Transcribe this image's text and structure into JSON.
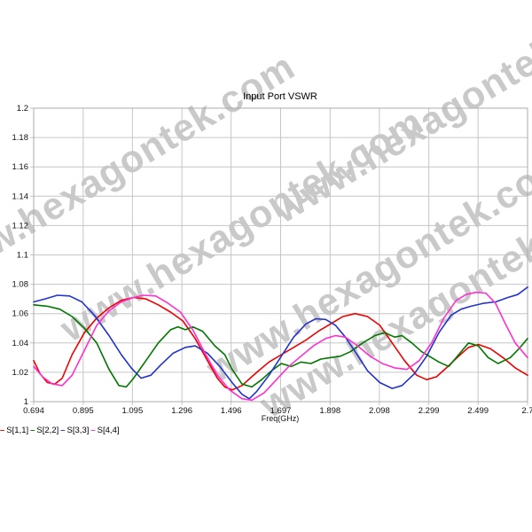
{
  "watermark": {
    "text": "www.hexagontek.com",
    "color": "#c9c9c9"
  },
  "chart": {
    "title": "Input Port VSWR",
    "xlabel": "Freq(GHz)"
  },
  "legend": {
    "items": [
      {
        "label": "S[1,1]"
      },
      {
        "label": "S[2,2]"
      },
      {
        "label": "S[3,3]"
      },
      {
        "label": "S[4,4]"
      }
    ]
  },
  "chart_data": {
    "type": "line",
    "title": "Input Port VSWR",
    "xlabel": "Freq(GHz)",
    "ylabel": "",
    "xlim": [
      0.694,
      2.7
    ],
    "ylim": [
      1.0,
      1.2
    ],
    "grid": true,
    "legend_position": "bottom-left",
    "x_ticks": {
      "values": [
        0.694,
        0.895,
        1.095,
        1.296,
        1.496,
        1.697,
        1.898,
        2.098,
        2.299,
        2.499,
        2.7
      ],
      "labels": [
        "0.694",
        "0.895",
        "1.095",
        "1.296",
        "1.496",
        "1.697",
        "1.898",
        "2.098",
        "2.299",
        "2.499",
        "2.7"
      ]
    },
    "y_ticks": {
      "values": [
        1.2,
        1.18,
        1.16,
        1.14,
        1.12,
        1.1,
        1.08,
        1.06,
        1.04,
        1.02,
        1.0
      ],
      "labels": [
        "1.2",
        "1.18",
        "1.16",
        "1.14",
        "1.12",
        "1.1",
        "1.08",
        "1.06",
        "1.04",
        "1.02",
        "1"
      ]
    },
    "series": [
      {
        "name": "S[1,1]",
        "color": "#ee0000",
        "points": [
          [
            0.694,
            1.028
          ],
          [
            0.72,
            1.019
          ],
          [
            0.75,
            1.013
          ],
          [
            0.78,
            1.012
          ],
          [
            0.81,
            1.016
          ],
          [
            0.85,
            1.032
          ],
          [
            0.9,
            1.047
          ],
          [
            0.95,
            1.057
          ],
          [
            1.0,
            1.064
          ],
          [
            1.05,
            1.069
          ],
          [
            1.1,
            1.071
          ],
          [
            1.15,
            1.07
          ],
          [
            1.2,
            1.066
          ],
          [
            1.25,
            1.061
          ],
          [
            1.3,
            1.055
          ],
          [
            1.35,
            1.043
          ],
          [
            1.4,
            1.028
          ],
          [
            1.44,
            1.016
          ],
          [
            1.47,
            1.01
          ],
          [
            1.5,
            1.008
          ],
          [
            1.54,
            1.011
          ],
          [
            1.6,
            1.02
          ],
          [
            1.65,
            1.027
          ],
          [
            1.7,
            1.032
          ],
          [
            1.75,
            1.037
          ],
          [
            1.8,
            1.042
          ],
          [
            1.85,
            1.048
          ],
          [
            1.9,
            1.053
          ],
          [
            1.95,
            1.058
          ],
          [
            2.0,
            1.06
          ],
          [
            2.05,
            1.058
          ],
          [
            2.1,
            1.052
          ],
          [
            2.15,
            1.04
          ],
          [
            2.2,
            1.028
          ],
          [
            2.25,
            1.018
          ],
          [
            2.29,
            1.015
          ],
          [
            2.33,
            1.017
          ],
          [
            2.37,
            1.023
          ],
          [
            2.42,
            1.031
          ],
          [
            2.46,
            1.037
          ],
          [
            2.5,
            1.039
          ],
          [
            2.55,
            1.036
          ],
          [
            2.6,
            1.03
          ],
          [
            2.65,
            1.023
          ],
          [
            2.7,
            1.018
          ]
        ]
      },
      {
        "name": "S[2,2]",
        "color": "#007700",
        "points": [
          [
            0.694,
            1.066
          ],
          [
            0.75,
            1.065
          ],
          [
            0.8,
            1.063
          ],
          [
            0.85,
            1.058
          ],
          [
            0.9,
            1.05
          ],
          [
            0.95,
            1.04
          ],
          [
            1.0,
            1.022
          ],
          [
            1.04,
            1.011
          ],
          [
            1.07,
            1.01
          ],
          [
            1.1,
            1.016
          ],
          [
            1.15,
            1.028
          ],
          [
            1.2,
            1.04
          ],
          [
            1.25,
            1.049
          ],
          [
            1.28,
            1.051
          ],
          [
            1.31,
            1.049
          ],
          [
            1.34,
            1.051
          ],
          [
            1.38,
            1.048
          ],
          [
            1.43,
            1.038
          ],
          [
            1.47,
            1.032
          ],
          [
            1.5,
            1.022
          ],
          [
            1.54,
            1.012
          ],
          [
            1.58,
            1.01
          ],
          [
            1.62,
            1.015
          ],
          [
            1.66,
            1.021
          ],
          [
            1.7,
            1.026
          ],
          [
            1.74,
            1.024
          ],
          [
            1.78,
            1.027
          ],
          [
            1.82,
            1.026
          ],
          [
            1.86,
            1.029
          ],
          [
            1.9,
            1.03
          ],
          [
            1.94,
            1.031
          ],
          [
            1.98,
            1.034
          ],
          [
            2.03,
            1.04
          ],
          [
            2.08,
            1.045
          ],
          [
            2.12,
            1.047
          ],
          [
            2.16,
            1.044
          ],
          [
            2.19,
            1.045
          ],
          [
            2.23,
            1.04
          ],
          [
            2.27,
            1.034
          ],
          [
            2.31,
            1.03
          ],
          [
            2.34,
            1.027
          ],
          [
            2.38,
            1.024
          ],
          [
            2.42,
            1.032
          ],
          [
            2.46,
            1.04
          ],
          [
            2.5,
            1.038
          ],
          [
            2.54,
            1.03
          ],
          [
            2.58,
            1.026
          ],
          [
            2.63,
            1.03
          ],
          [
            2.67,
            1.037
          ],
          [
            2.7,
            1.043
          ]
        ]
      },
      {
        "name": "S[3,3]",
        "color": "#2233cc",
        "points": [
          [
            0.694,
            1.068
          ],
          [
            0.74,
            1.07
          ],
          [
            0.79,
            1.0725
          ],
          [
            0.84,
            1.072
          ],
          [
            0.89,
            1.068
          ],
          [
            0.94,
            1.059
          ],
          [
            1.0,
            1.045
          ],
          [
            1.05,
            1.032
          ],
          [
            1.09,
            1.023
          ],
          [
            1.13,
            1.016
          ],
          [
            1.17,
            1.018
          ],
          [
            1.21,
            1.025
          ],
          [
            1.26,
            1.033
          ],
          [
            1.31,
            1.037
          ],
          [
            1.35,
            1.038
          ],
          [
            1.4,
            1.033
          ],
          [
            1.45,
            1.024
          ],
          [
            1.5,
            1.013
          ],
          [
            1.54,
            1.005
          ],
          [
            1.57,
            1.002
          ],
          [
            1.6,
            1.007
          ],
          [
            1.65,
            1.018
          ],
          [
            1.7,
            1.031
          ],
          [
            1.75,
            1.044
          ],
          [
            1.8,
            1.053
          ],
          [
            1.84,
            1.0565
          ],
          [
            1.88,
            1.056
          ],
          [
            1.92,
            1.052
          ],
          [
            1.96,
            1.044
          ],
          [
            2.0,
            1.034
          ],
          [
            2.05,
            1.021
          ],
          [
            2.1,
            1.013
          ],
          [
            2.15,
            1.009
          ],
          [
            2.19,
            1.011
          ],
          [
            2.24,
            1.019
          ],
          [
            2.29,
            1.031
          ],
          [
            2.34,
            1.047
          ],
          [
            2.39,
            1.059
          ],
          [
            2.43,
            1.063
          ],
          [
            2.47,
            1.065
          ],
          [
            2.52,
            1.067
          ],
          [
            2.57,
            1.068
          ],
          [
            2.62,
            1.071
          ],
          [
            2.66,
            1.073
          ],
          [
            2.7,
            1.078
          ]
        ]
      },
      {
        "name": "S[4,4]",
        "color": "#ff2fd0",
        "points": [
          [
            0.694,
            1.024
          ],
          [
            0.73,
            1.017
          ],
          [
            0.77,
            1.012
          ],
          [
            0.81,
            1.011
          ],
          [
            0.85,
            1.018
          ],
          [
            0.9,
            1.035
          ],
          [
            0.95,
            1.052
          ],
          [
            1.0,
            1.062
          ],
          [
            1.05,
            1.068
          ],
          [
            1.1,
            1.071
          ],
          [
            1.14,
            1.0725
          ],
          [
            1.19,
            1.072
          ],
          [
            1.24,
            1.067
          ],
          [
            1.29,
            1.061
          ],
          [
            1.34,
            1.049
          ],
          [
            1.39,
            1.033
          ],
          [
            1.44,
            1.018
          ],
          [
            1.49,
            1.008
          ],
          [
            1.54,
            1.002
          ],
          [
            1.58,
            1.001
          ],
          [
            1.63,
            1.006
          ],
          [
            1.68,
            1.015
          ],
          [
            1.73,
            1.024
          ],
          [
            1.78,
            1.031
          ],
          [
            1.83,
            1.038
          ],
          [
            1.88,
            1.043
          ],
          [
            1.92,
            1.045
          ],
          [
            1.96,
            1.044
          ],
          [
            2.01,
            1.038
          ],
          [
            2.06,
            1.031
          ],
          [
            2.11,
            1.026
          ],
          [
            2.16,
            1.023
          ],
          [
            2.21,
            1.022
          ],
          [
            2.26,
            1.028
          ],
          [
            2.31,
            1.04
          ],
          [
            2.36,
            1.057
          ],
          [
            2.41,
            1.069
          ],
          [
            2.45,
            1.073
          ],
          [
            2.49,
            1.0745
          ],
          [
            2.53,
            1.074
          ],
          [
            2.57,
            1.067
          ],
          [
            2.61,
            1.053
          ],
          [
            2.65,
            1.04
          ],
          [
            2.7,
            1.03
          ]
        ]
      }
    ]
  }
}
